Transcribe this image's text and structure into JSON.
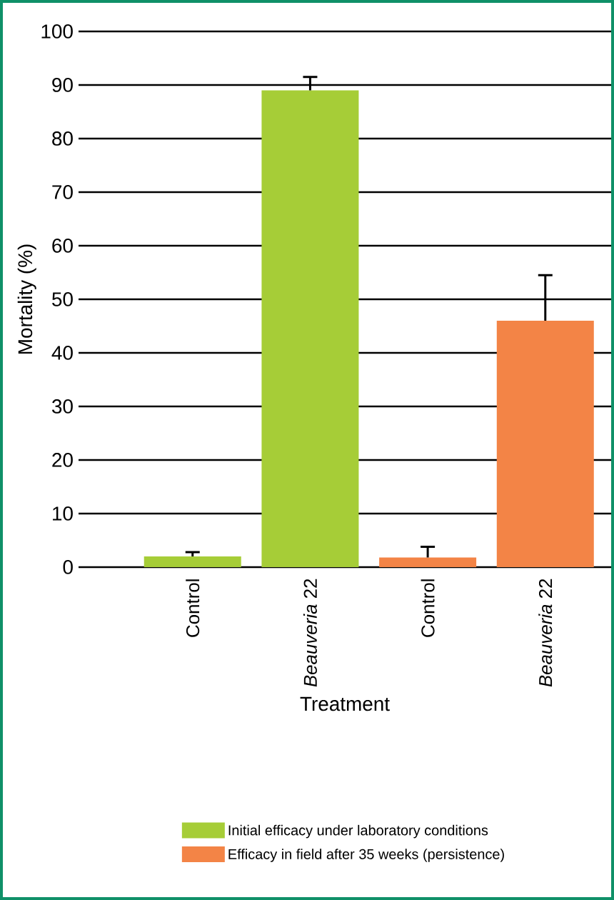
{
  "chart_data": {
    "type": "bar",
    "xlabel": "Treatment",
    "ylabel": "Mortality (%)",
    "categories": [
      "Control",
      "*Beauveria* 22",
      "Control",
      "*Beauveria* 22"
    ],
    "series": [
      {
        "name": "Initial efficacy under laboratory conditions",
        "color": "#a6cd37",
        "values": [
          2,
          89,
          null,
          null
        ],
        "errors": [
          [
            2,
            2.8
          ],
          [
            89,
            91.5
          ],
          null,
          null
        ]
      },
      {
        "name": "Efficacy in field after 35 weeks (persistence)",
        "color": "#f38446",
        "values": [
          null,
          null,
          1.8,
          46
        ],
        "errors": [
          null,
          null,
          [
            1.8,
            3.8
          ],
          [
            46,
            54.5
          ]
        ]
      }
    ],
    "ylim": [
      0,
      100
    ],
    "yticks": [
      0,
      10,
      20,
      30,
      40,
      50,
      60,
      70,
      80,
      90,
      100
    ],
    "grid": "y",
    "legend": "bottom"
  }
}
